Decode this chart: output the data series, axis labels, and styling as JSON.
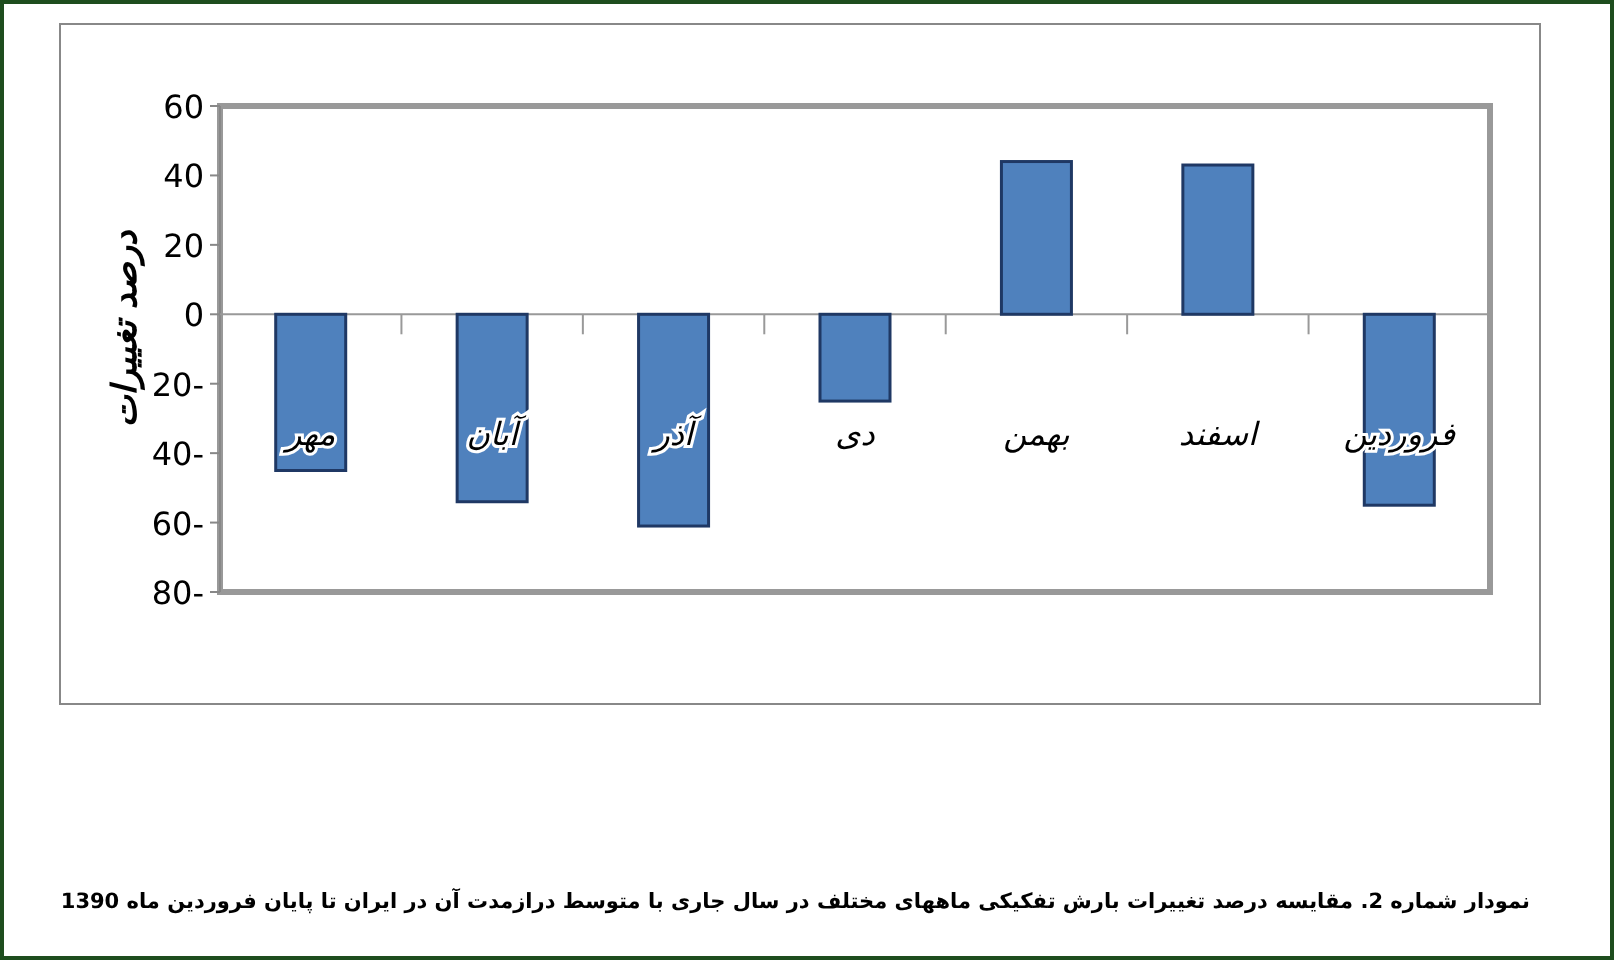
{
  "chart_data": {
    "type": "bar",
    "ylabel": "درصد تغییرات",
    "categories": [
      "مهر",
      "آبان",
      "آذر",
      "دی",
      "بهمن",
      "اسفند",
      "فروردین"
    ],
    "values": [
      -45,
      -54,
      -61,
      -25,
      44,
      43,
      -55
    ],
    "color": "#4f81bd",
    "ylim": [
      -80,
      60
    ],
    "yticks": [
      60,
      40,
      20,
      0,
      {
        "value": -20,
        "label": "20-"
      },
      {
        "value": -40,
        "label": "40-"
      },
      {
        "value": -60,
        "label": "60-"
      },
      {
        "value": -80,
        "label": "80-"
      }
    ],
    "annotations": [
      "نمودار شماره 2. مقایسه درصد تغییرات بارش تفکیکی ماههای مختلف در سال جاری با متوسط درازمدت آن در ایران تا پایان فروردین ماه 1390"
    ]
  }
}
